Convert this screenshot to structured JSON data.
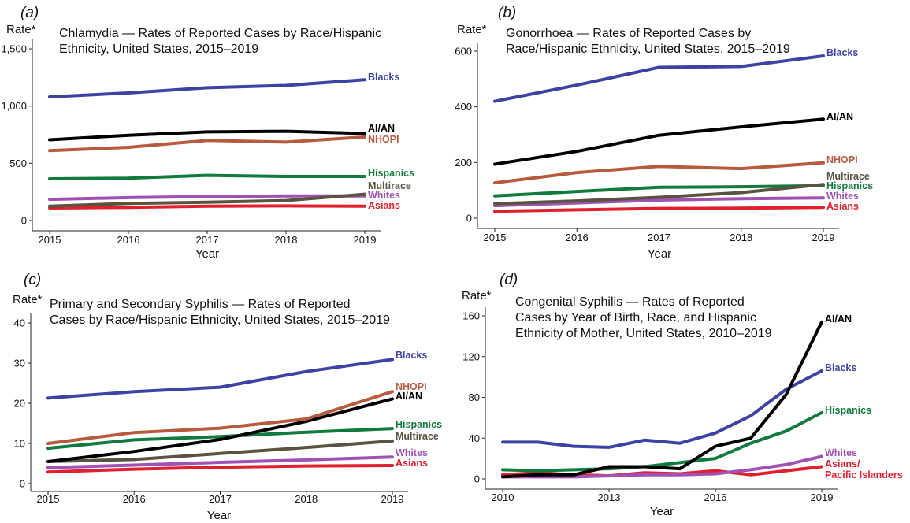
{
  "colors": {
    "blacks": "#3c43a5",
    "aian": "#000000",
    "nhopi": "#b75a3e",
    "hispanics": "#117a3d",
    "multirace": "#5a5340",
    "whites": "#a052b4",
    "asians": "#e0202c"
  },
  "chart_data": [
    {
      "panel": "(a)",
      "type": "line",
      "title_lines": [
        "Chlamydia — Rates of Reported Cases by Race/Hispanic",
        "Ethnicity, United States, 2015–2019"
      ],
      "ylabel": "Rate*",
      "xlabel": "Year",
      "x": [
        2015,
        2016,
        2017,
        2018,
        2019
      ],
      "xticks": [
        "2015",
        "2016",
        "2017",
        "2018",
        "2019"
      ],
      "ylim": [
        0,
        1500
      ],
      "yticks": [
        0,
        500,
        1000,
        1500
      ],
      "ytick_labels": [
        "0",
        "500",
        "1,000",
        "1,500"
      ],
      "series": [
        {
          "name": "Blacks",
          "color_key": "blacks",
          "values": [
            1080,
            1115,
            1160,
            1180,
            1230
          ]
        },
        {
          "name": "AI/AN",
          "color_key": "aian",
          "values": [
            705,
            745,
            775,
            780,
            760
          ]
        },
        {
          "name": "NHOPI",
          "color_key": "nhopi",
          "values": [
            610,
            640,
            700,
            685,
            730
          ]
        },
        {
          "name": "Hispanics",
          "color_key": "hispanics",
          "values": [
            365,
            370,
            395,
            385,
            385
          ]
        },
        {
          "name": "Multirace",
          "color_key": "multirace",
          "values": [
            125,
            150,
            160,
            175,
            230
          ]
        },
        {
          "name": "Whites",
          "color_key": "whites",
          "values": [
            185,
            200,
            210,
            215,
            215
          ]
        },
        {
          "name": "Asians",
          "color_key": "asians",
          "values": [
            110,
            115,
            125,
            128,
            125
          ]
        }
      ]
    },
    {
      "panel": "(b)",
      "type": "line",
      "title_lines": [
        "Gonorrhoea — Rates of Reported Cases by",
        "Race/Hispanic Ethnicity, United States, 2015–2019"
      ],
      "ylabel": "Rate*",
      "xlabel": "Year",
      "x": [
        2015,
        2016,
        2017,
        2018,
        2019
      ],
      "xticks": [
        "2015",
        "2016",
        "2017",
        "2018",
        "2019"
      ],
      "ylim": [
        0,
        600
      ],
      "yticks": [
        0,
        200,
        400,
        600
      ],
      "ytick_labels": [
        "0",
        "200",
        "400",
        "600"
      ],
      "series": [
        {
          "name": "Blacks",
          "color_key": "blacks",
          "values": [
            420,
            478,
            542,
            545,
            583
          ]
        },
        {
          "name": "AI/AN",
          "color_key": "aian",
          "values": [
            194,
            240,
            298,
            328,
            356
          ]
        },
        {
          "name": "NHOPI",
          "color_key": "nhopi",
          "values": [
            127,
            164,
            186,
            178,
            199
          ]
        },
        {
          "name": "Multirace",
          "color_key": "multirace",
          "values": [
            52,
            62,
            75,
            92,
            121
          ]
        },
        {
          "name": "Hispanics",
          "color_key": "hispanics",
          "values": [
            80,
            96,
            111,
            113,
            117
          ]
        },
        {
          "name": "Whites",
          "color_key": "whites",
          "values": [
            45,
            55,
            65,
            70,
            73
          ]
        },
        {
          "name": "Asians",
          "color_key": "asians",
          "values": [
            25,
            30,
            35,
            36,
            39
          ]
        }
      ]
    },
    {
      "panel": "(c)",
      "type": "line",
      "title_lines": [
        "Primary and Secondary Syphilis — Rates of Reported",
        "Cases by Race/Hispanic Ethnicity, United States, 2015–2019"
      ],
      "ylabel": "Rate*",
      "xlabel": "Year",
      "x": [
        2015,
        2016,
        2017,
        2018,
        2019
      ],
      "xticks": [
        "2015",
        "2016",
        "2017",
        "2018",
        "2019"
      ],
      "ylim": [
        0,
        40
      ],
      "yticks": [
        0,
        10,
        20,
        30,
        40
      ],
      "ytick_labels": [
        "0",
        "10",
        "20",
        "30",
        "40"
      ],
      "series": [
        {
          "name": "Blacks",
          "color_key": "blacks",
          "values": [
            21.3,
            22.9,
            24.0,
            27.9,
            30.9
          ]
        },
        {
          "name": "NHOPI",
          "color_key": "nhopi",
          "values": [
            10.0,
            12.7,
            13.8,
            16.1,
            22.9
          ]
        },
        {
          "name": "AI/AN",
          "color_key": "aian",
          "values": [
            5.5,
            8.0,
            11.0,
            15.5,
            21.1
          ]
        },
        {
          "name": "Hispanics",
          "color_key": "hispanics",
          "values": [
            8.8,
            10.9,
            11.7,
            12.8,
            13.7
          ]
        },
        {
          "name": "Multirace",
          "color_key": "multirace",
          "values": [
            5.5,
            6.0,
            7.5,
            9.0,
            10.6
          ]
        },
        {
          "name": "Whites",
          "color_key": "whites",
          "values": [
            4.0,
            4.6,
            5.3,
            5.9,
            6.6
          ]
        },
        {
          "name": "Asians",
          "color_key": "asians",
          "values": [
            2.9,
            3.6,
            4.1,
            4.4,
            4.5
          ]
        }
      ]
    },
    {
      "panel": "(d)",
      "type": "line",
      "title_lines": [
        "Congenital Syphilis — Rates of Reported",
        "Cases by Year of Birth, Race, and Hispanic",
        "Ethnicity of Mother, United States, 2010–2019"
      ],
      "ylabel": "Rate*",
      "xlabel": "Year",
      "x": [
        2010,
        2011,
        2012,
        2013,
        2014,
        2015,
        2016,
        2017,
        2018,
        2019
      ],
      "xticks": [
        "2010",
        "2013",
        "2016",
        "2019"
      ],
      "xtick_values": [
        2010,
        2013,
        2016,
        2019
      ],
      "ylim": [
        0,
        160
      ],
      "yticks": [
        0,
        40,
        80,
        120,
        160
      ],
      "ytick_labels": [
        "0",
        "40",
        "80",
        "120",
        "160"
      ],
      "series": [
        {
          "name": "AI/AN",
          "color_key": "aian",
          "values": [
            2,
            4,
            4,
            12,
            12,
            10,
            32,
            40,
            83,
            154
          ]
        },
        {
          "name": "Blacks",
          "color_key": "blacks",
          "values": [
            36,
            36,
            32,
            31,
            38,
            35,
            45,
            62,
            88,
            106
          ]
        },
        {
          "name": "Hispanics",
          "color_key": "hispanics",
          "values": [
            9,
            8,
            9,
            10,
            12,
            16,
            20,
            35,
            47,
            65
          ]
        },
        {
          "name": "Whites",
          "color_key": "whites",
          "values": [
            2,
            2,
            2,
            3,
            4,
            4,
            5,
            9,
            14,
            22
          ]
        },
        {
          "name": "Asians/ Pacific Islanders",
          "label_lines": [
            "Asians/",
            "Pacific Islanders"
          ],
          "color_key": "asians",
          "values": [
            4,
            6,
            4,
            3,
            6,
            5,
            8,
            4,
            8,
            12
          ]
        }
      ]
    }
  ]
}
